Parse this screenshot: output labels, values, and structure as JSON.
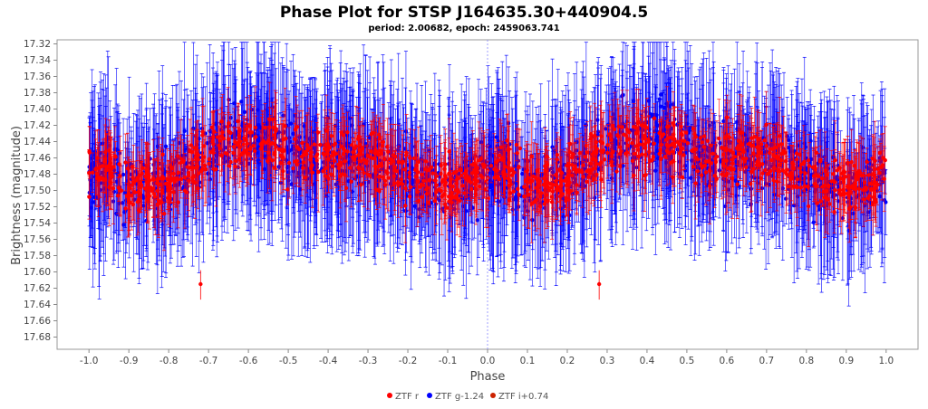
{
  "chart_data": {
    "type": "scatter",
    "title": "Phase Plot for STSP J164635.30+440904.5",
    "subtitle": "period: 2.00682, epoch: 2459063.741",
    "xlabel": "Phase",
    "ylabel": "Brightness (magnitude)",
    "xlim": [
      -1.08,
      1.08
    ],
    "ylim": [
      17.695,
      17.315
    ],
    "y_inverted": true,
    "grid": false,
    "x_ticks": [
      "-1.0",
      "-0.9",
      "-0.8",
      "-0.7",
      "-0.6",
      "-0.5",
      "-0.4",
      "-0.3",
      "-0.2",
      "-0.1",
      "0.0",
      "0.1",
      "0.2",
      "0.3",
      "0.4",
      "0.5",
      "0.6",
      "0.7",
      "0.8",
      "0.9",
      "1.0"
    ],
    "y_ticks": [
      "17.32",
      "17.34",
      "17.36",
      "17.38",
      "17.40",
      "17.42",
      "17.44",
      "17.46",
      "17.48",
      "17.50",
      "17.52",
      "17.54",
      "17.56",
      "17.58",
      "17.60",
      "17.62",
      "17.64",
      "17.66",
      "17.68"
    ],
    "reference_line_x": 0.0,
    "legend_position": "bottom-center",
    "series": [
      {
        "name": "ZTF g-1.24",
        "color": "#0000ff",
        "marker": "circle",
        "error_bars": true,
        "n_points_per_cycle": 800,
        "profile": "mean magnitude ~17.475, brighter (~17.43) near phase 0.4 and -0.6, fainter (~17.50) near phase -0.1/0.9",
        "values": [
          [
            -1.0,
            17.48
          ],
          [
            -0.95,
            17.47
          ],
          [
            -0.9,
            17.5
          ],
          [
            -0.85,
            17.49
          ],
          [
            -0.8,
            17.49
          ],
          [
            -0.75,
            17.47
          ],
          [
            -0.7,
            17.45
          ],
          [
            -0.65,
            17.44
          ],
          [
            -0.6,
            17.43
          ],
          [
            -0.55,
            17.44
          ],
          [
            -0.5,
            17.45
          ],
          [
            -0.45,
            17.46
          ],
          [
            -0.4,
            17.46
          ],
          [
            -0.35,
            17.46
          ],
          [
            -0.3,
            17.46
          ],
          [
            -0.25,
            17.47
          ],
          [
            -0.2,
            17.48
          ],
          [
            -0.15,
            17.49
          ],
          [
            -0.1,
            17.5
          ],
          [
            -0.05,
            17.49
          ],
          [
            0.0,
            17.48
          ],
          [
            0.05,
            17.47
          ],
          [
            0.1,
            17.5
          ],
          [
            0.15,
            17.49
          ],
          [
            0.2,
            17.49
          ],
          [
            0.25,
            17.47
          ],
          [
            0.3,
            17.45
          ],
          [
            0.35,
            17.44
          ],
          [
            0.4,
            17.43
          ],
          [
            0.45,
            17.44
          ],
          [
            0.5,
            17.45
          ],
          [
            0.55,
            17.46
          ],
          [
            0.6,
            17.46
          ],
          [
            0.65,
            17.46
          ],
          [
            0.7,
            17.46
          ],
          [
            0.75,
            17.47
          ],
          [
            0.8,
            17.48
          ],
          [
            0.85,
            17.49
          ],
          [
            0.9,
            17.5
          ],
          [
            0.95,
            17.49
          ],
          [
            1.0,
            17.48
          ]
        ]
      },
      {
        "name": "ZTF r",
        "color": "#ff0000",
        "marker": "circle",
        "error_bars": true,
        "n_points_per_cycle": 600,
        "profile": "mean magnitude ~17.475, brighter (~17.44) near phase 0.4 and -0.6, fainter (~17.50) near phase -0.1/0.9; outliers near 17.615 at phase -0.72 and 0.28",
        "values": [
          [
            -1.0,
            17.48
          ],
          [
            -0.95,
            17.47
          ],
          [
            -0.9,
            17.5
          ],
          [
            -0.85,
            17.49
          ],
          [
            -0.8,
            17.49
          ],
          [
            -0.75,
            17.47
          ],
          [
            -0.7,
            17.45
          ],
          [
            -0.65,
            17.44
          ],
          [
            -0.6,
            17.44
          ],
          [
            -0.55,
            17.44
          ],
          [
            -0.5,
            17.45
          ],
          [
            -0.45,
            17.46
          ],
          [
            -0.4,
            17.46
          ],
          [
            -0.35,
            17.46
          ],
          [
            -0.3,
            17.46
          ],
          [
            -0.25,
            17.47
          ],
          [
            -0.2,
            17.48
          ],
          [
            -0.15,
            17.49
          ],
          [
            -0.1,
            17.5
          ],
          [
            -0.05,
            17.49
          ],
          [
            0.0,
            17.48
          ],
          [
            0.05,
            17.47
          ],
          [
            0.1,
            17.5
          ],
          [
            0.15,
            17.49
          ],
          [
            0.2,
            17.49
          ],
          [
            0.25,
            17.47
          ],
          [
            0.3,
            17.45
          ],
          [
            0.35,
            17.44
          ],
          [
            0.4,
            17.44
          ],
          [
            0.45,
            17.44
          ],
          [
            0.5,
            17.45
          ],
          [
            0.55,
            17.46
          ],
          [
            0.6,
            17.46
          ],
          [
            0.65,
            17.46
          ],
          [
            0.7,
            17.46
          ],
          [
            0.75,
            17.47
          ],
          [
            0.8,
            17.48
          ],
          [
            0.85,
            17.49
          ],
          [
            0.9,
            17.5
          ],
          [
            0.95,
            17.49
          ],
          [
            1.0,
            17.48
          ]
        ]
      },
      {
        "name": "ZTF i+0.74",
        "color": "#cc2200",
        "marker": "circle",
        "error_bars": true,
        "n_points_per_cycle": 0,
        "values": []
      }
    ]
  }
}
